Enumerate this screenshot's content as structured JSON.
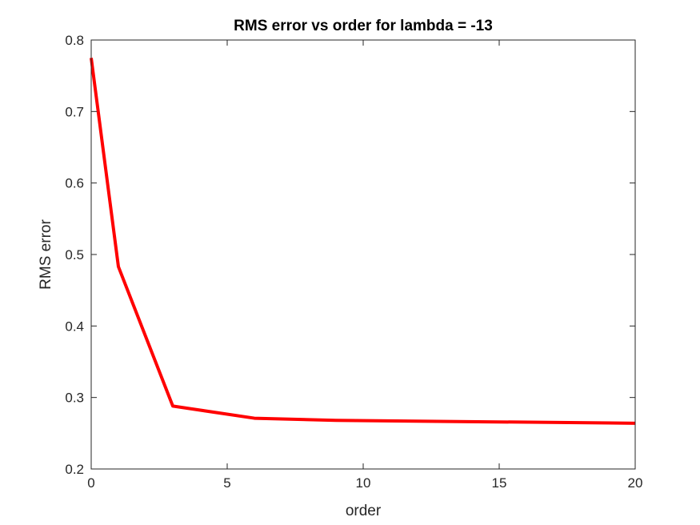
{
  "chart_data": {
    "type": "line",
    "title": "RMS error vs order for lambda = -13",
    "xlabel": "order",
    "ylabel": "RMS error",
    "xlim": [
      0,
      20
    ],
    "ylim": [
      0.2,
      0.8
    ],
    "xticks": [
      0,
      5,
      10,
      15,
      20
    ],
    "xtick_labels": [
      "0",
      "5",
      "10",
      "15",
      "20"
    ],
    "yticks": [
      0.2,
      0.3,
      0.4,
      0.5,
      0.6,
      0.7,
      0.8
    ],
    "ytick_labels": [
      "0.2",
      "0.3",
      "0.4",
      "0.5",
      "0.6",
      "0.7",
      "0.8"
    ],
    "grid": false,
    "series": [
      {
        "color": "#ff0000",
        "x": [
          0,
          1,
          3,
          6,
          9,
          20
        ],
        "y": [
          0.775,
          0.483,
          0.288,
          0.271,
          0.268,
          0.264
        ]
      }
    ]
  }
}
